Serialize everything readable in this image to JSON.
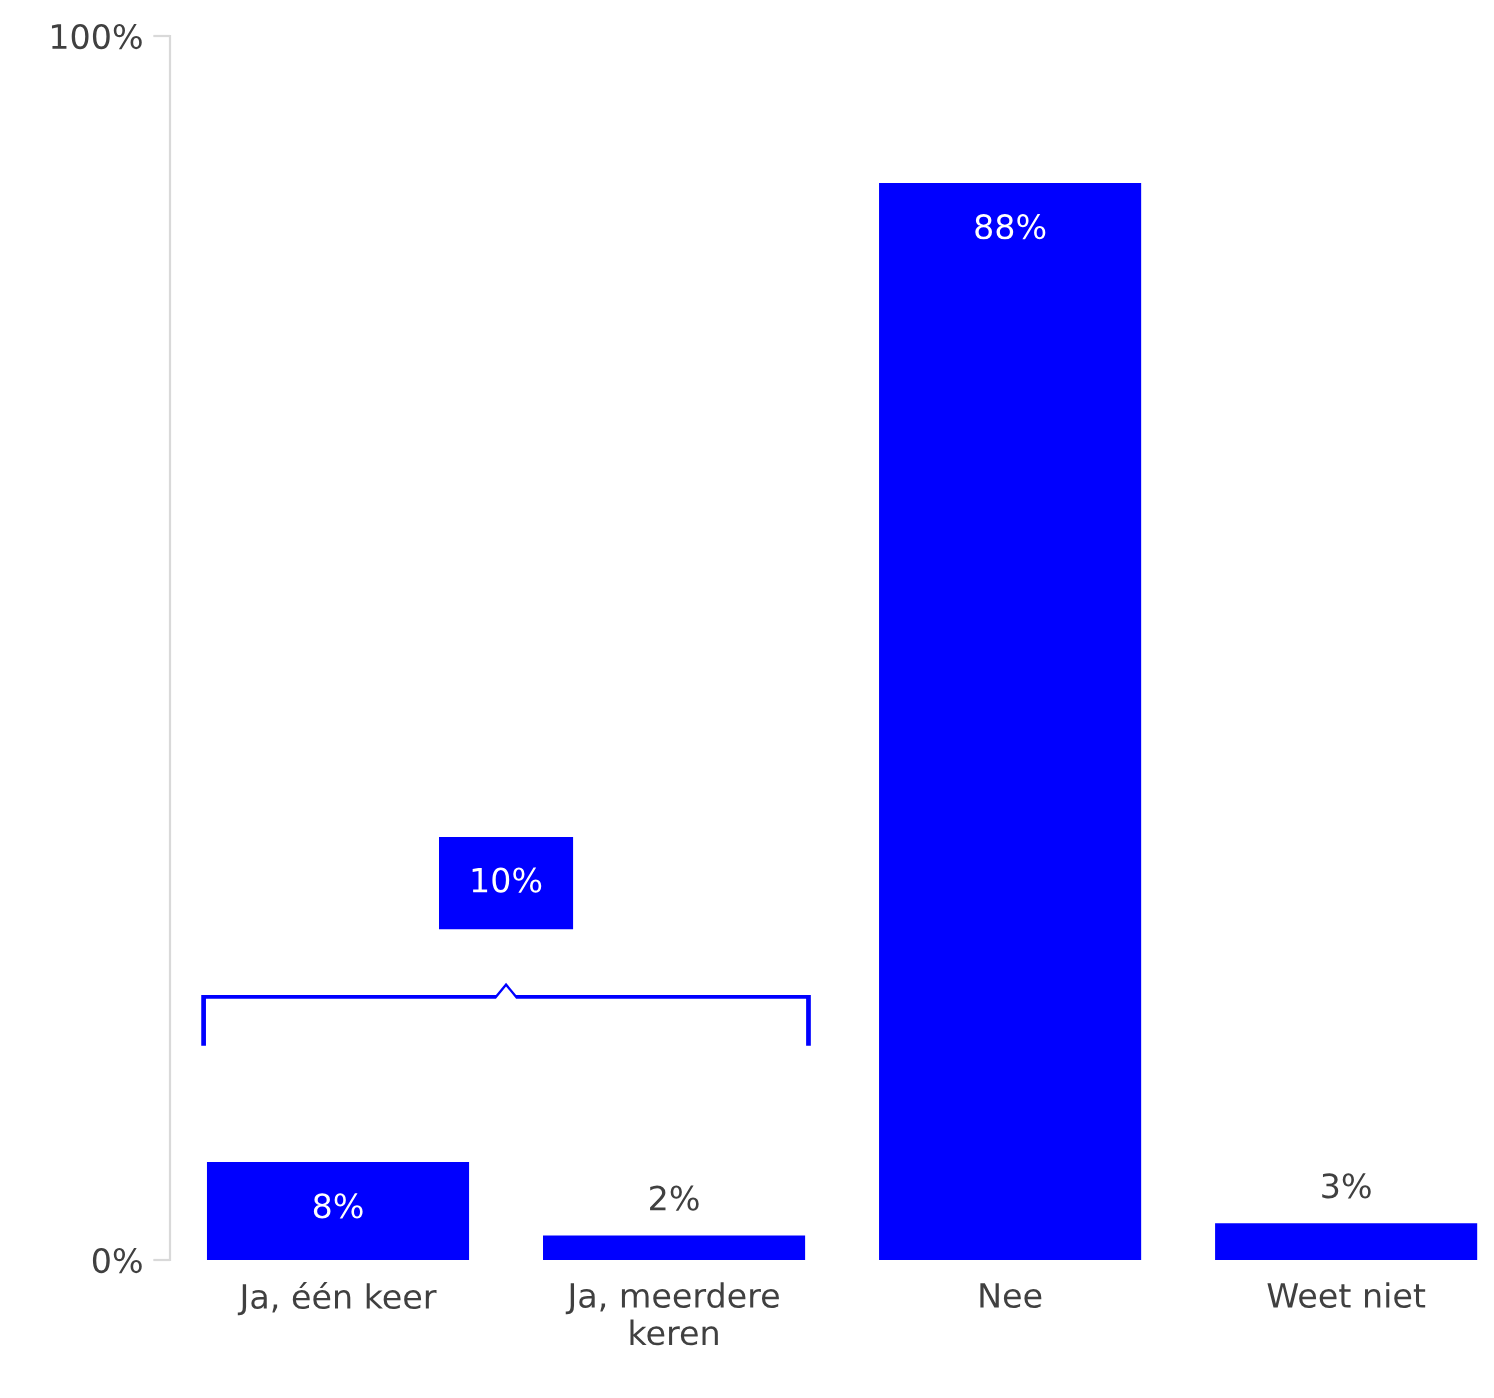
{
  "chart_data": {
    "type": "bar",
    "categories": [
      "Ja, één keer",
      "Ja, meerdere keren",
      "Nee",
      "Weet niet"
    ],
    "values": [
      8,
      2,
      88,
      3
    ],
    "color": "#0000ff",
    "value_labels": [
      "8%",
      "2%",
      "88%",
      "3%"
    ],
    "ylim": [
      0,
      100
    ],
    "yticks": [
      {
        "value": 0,
        "label": "0%"
      },
      {
        "value": 100,
        "label": "100%"
      }
    ],
    "grid": false,
    "annotations": [
      "10%"
    ]
  }
}
